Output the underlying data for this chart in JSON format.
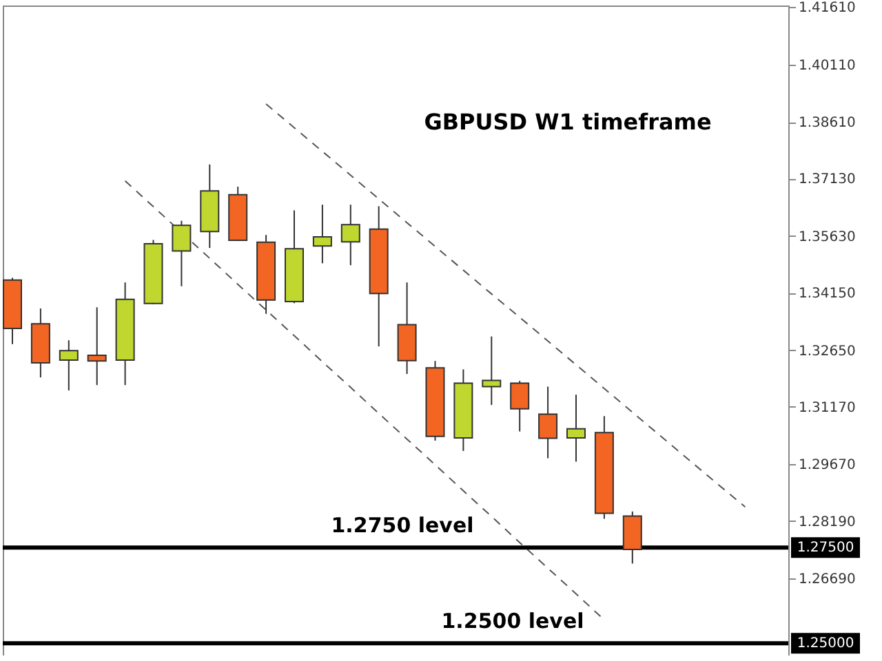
{
  "chart_data": {
    "type": "candlestick",
    "title": "GBPUSD W1 timeframe",
    "categories": [
      null,
      null,
      null,
      null,
      null,
      null,
      null,
      null,
      null,
      null,
      null,
      null,
      null,
      null,
      null,
      null,
      null,
      null,
      null,
      null,
      null,
      null,
      null,
      null,
      null,
      null,
      null
    ],
    "ohlc": [
      [
        1.3448,
        1.3454,
        1.3281,
        1.3322
      ],
      [
        1.3334,
        1.3374,
        1.3194,
        1.3232
      ],
      [
        1.3239,
        1.3291,
        1.316,
        1.3264
      ],
      [
        1.3252,
        1.3377,
        1.3174,
        1.3237
      ],
      [
        1.3239,
        1.3442,
        1.3174,
        1.3398
      ],
      [
        1.3387,
        1.3553,
        1.3385,
        1.3543
      ],
      [
        1.3524,
        1.3603,
        1.3432,
        1.3591
      ],
      [
        1.3575,
        1.375,
        1.3532,
        1.3681
      ],
      [
        1.3671,
        1.3692,
        1.355,
        1.3552
      ],
      [
        1.3547,
        1.3566,
        1.336,
        1.3396
      ],
      [
        1.3392,
        1.363,
        1.3388,
        1.353
      ],
      [
        1.3537,
        1.3645,
        1.3492,
        1.3561
      ],
      [
        1.3548,
        1.3645,
        1.3487,
        1.3593
      ],
      [
        1.3581,
        1.3641,
        1.3275,
        1.3413
      ],
      [
        1.3332,
        1.3442,
        1.3203,
        1.3238
      ],
      [
        1.3219,
        1.3237,
        1.3029,
        1.304
      ],
      [
        1.3036,
        1.3215,
        1.3002,
        1.3179
      ],
      [
        1.317,
        1.3301,
        1.3122,
        1.3186
      ],
      [
        1.3179,
        1.3185,
        1.3053,
        1.3112
      ],
      [
        1.3098,
        1.317,
        1.2983,
        1.3035
      ],
      [
        1.3036,
        1.3149,
        1.2974,
        1.306
      ],
      [
        1.305,
        1.3093,
        1.2825,
        1.2839
      ],
      [
        1.2832,
        1.2844,
        1.2708,
        1.2745
      ],
      null,
      null,
      null,
      null
    ],
    "colors": [
      "#f26522",
      "#f26522",
      "#c0d72f",
      "#f26522",
      "#c0d72f",
      "#c0d72f",
      "#c0d72f",
      "#c0d72f",
      "#f26522",
      "#f26522",
      "#c0d72f",
      "#c0d72f",
      "#c0d72f",
      "#f26522",
      "#f26522",
      "#f26522",
      "#c0d72f",
      "#c0d72f",
      "#f26522",
      "#f26522",
      "#c0d72f",
      "#f26522",
      "#f26522",
      null,
      null,
      null,
      null
    ],
    "series": [
      {
        "type": "line",
        "color": "#555555",
        "line_style": "dashed",
        "values": [
          null,
          null,
          null,
          null,
          null,
          null,
          null,
          null,
          null,
          1.3908,
          1.3846,
          1.3784,
          1.3722,
          1.366,
          1.3598,
          1.3536,
          1.3474,
          1.3412,
          1.3351,
          1.3289,
          1.3227,
          1.3165,
          1.3103,
          1.3041,
          1.2979,
          1.2917,
          1.2856
        ]
      },
      {
        "type": "line",
        "color": "#555555",
        "line_style": "dashed",
        "values": [
          null,
          null,
          null,
          null,
          1.3707,
          1.364,
          null,
          1.3505,
          1.3437,
          1.337,
          1.3303,
          1.3235,
          1.3168,
          1.31,
          1.3033,
          1.2966,
          1.2898,
          1.2831,
          1.2763,
          1.2696,
          1.2629,
          1.2561,
          null,
          null,
          null,
          null,
          null
        ]
      }
    ],
    "ylim": [
      1.2468,
      1.4165
    ],
    "yticks": [
      {
        "value": 1.2669,
        "label": "1.26690"
      },
      {
        "value": 1.2819,
        "label": "1.28190"
      },
      {
        "value": 1.2967,
        "label": "1.29670"
      },
      {
        "value": 1.3117,
        "label": "1.31170"
      },
      {
        "value": 1.3265,
        "label": "1.32650"
      },
      {
        "value": 1.3415,
        "label": "1.34150"
      },
      {
        "value": 1.3563,
        "label": "1.35630"
      },
      {
        "value": 1.3713,
        "label": "1.37130"
      },
      {
        "value": 1.3861,
        "label": "1.38610"
      },
      {
        "value": 1.4011,
        "label": "1.40110"
      },
      {
        "value": 1.4161,
        "label": "1.41610"
      }
    ],
    "ref_lines": [
      {
        "axis": "y",
        "value": 1.275,
        "label": "1.27500",
        "color": "#000000"
      },
      {
        "axis": "y",
        "value": 1.25,
        "label": "1.25000",
        "color": "#000000"
      }
    ],
    "annotations": [
      {
        "text": "1.2750 level",
        "y": 1.275
      },
      {
        "text": "1.2500 level",
        "y": 1.25
      }
    ],
    "grid": false,
    "tick_labels": "y"
  }
}
